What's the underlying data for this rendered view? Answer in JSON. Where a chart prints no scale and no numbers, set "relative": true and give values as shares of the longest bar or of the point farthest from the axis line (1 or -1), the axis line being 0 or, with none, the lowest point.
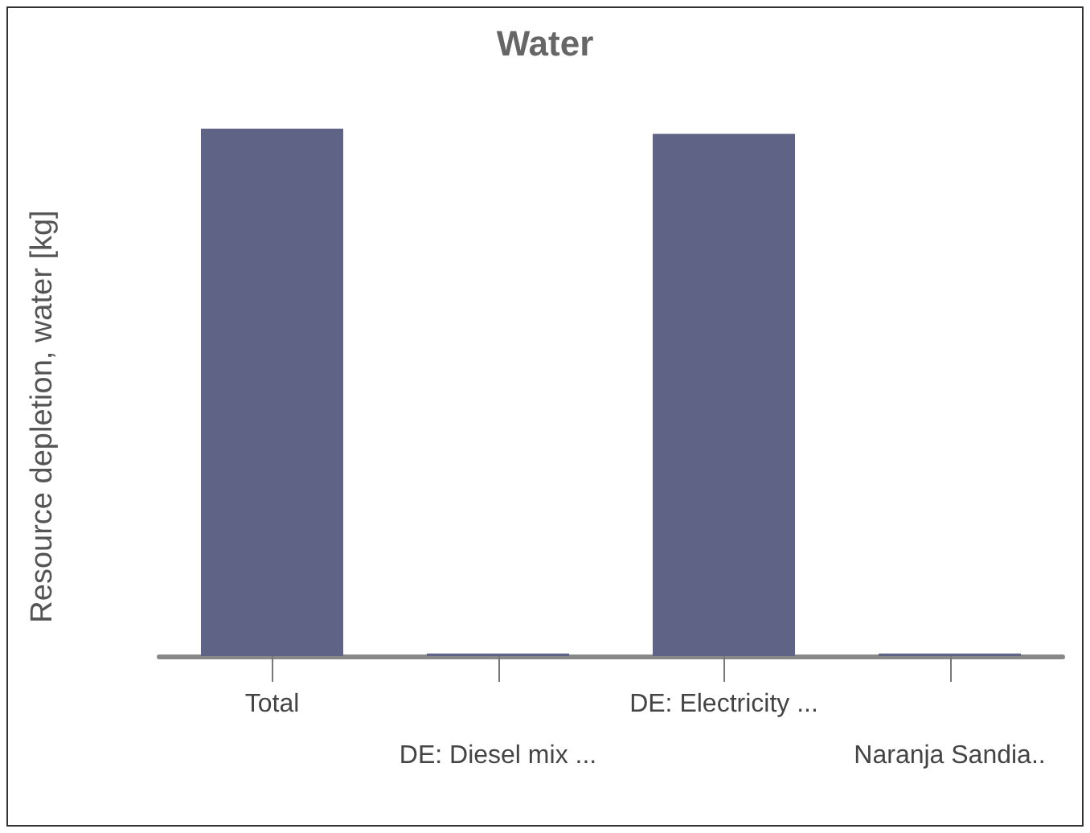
{
  "chart_data": {
    "type": "bar",
    "title": "Water",
    "ylabel": "Resource depletion, water [kg]",
    "relative": true,
    "categories": [
      "Total",
      "DE: Diesel mix ...",
      "DE: Electricity ...",
      "Naranja Sandia.."
    ],
    "values": [
      1,
      0.005,
      0.99,
      0.005
    ],
    "color": "#5f6386",
    "grid": false
  }
}
